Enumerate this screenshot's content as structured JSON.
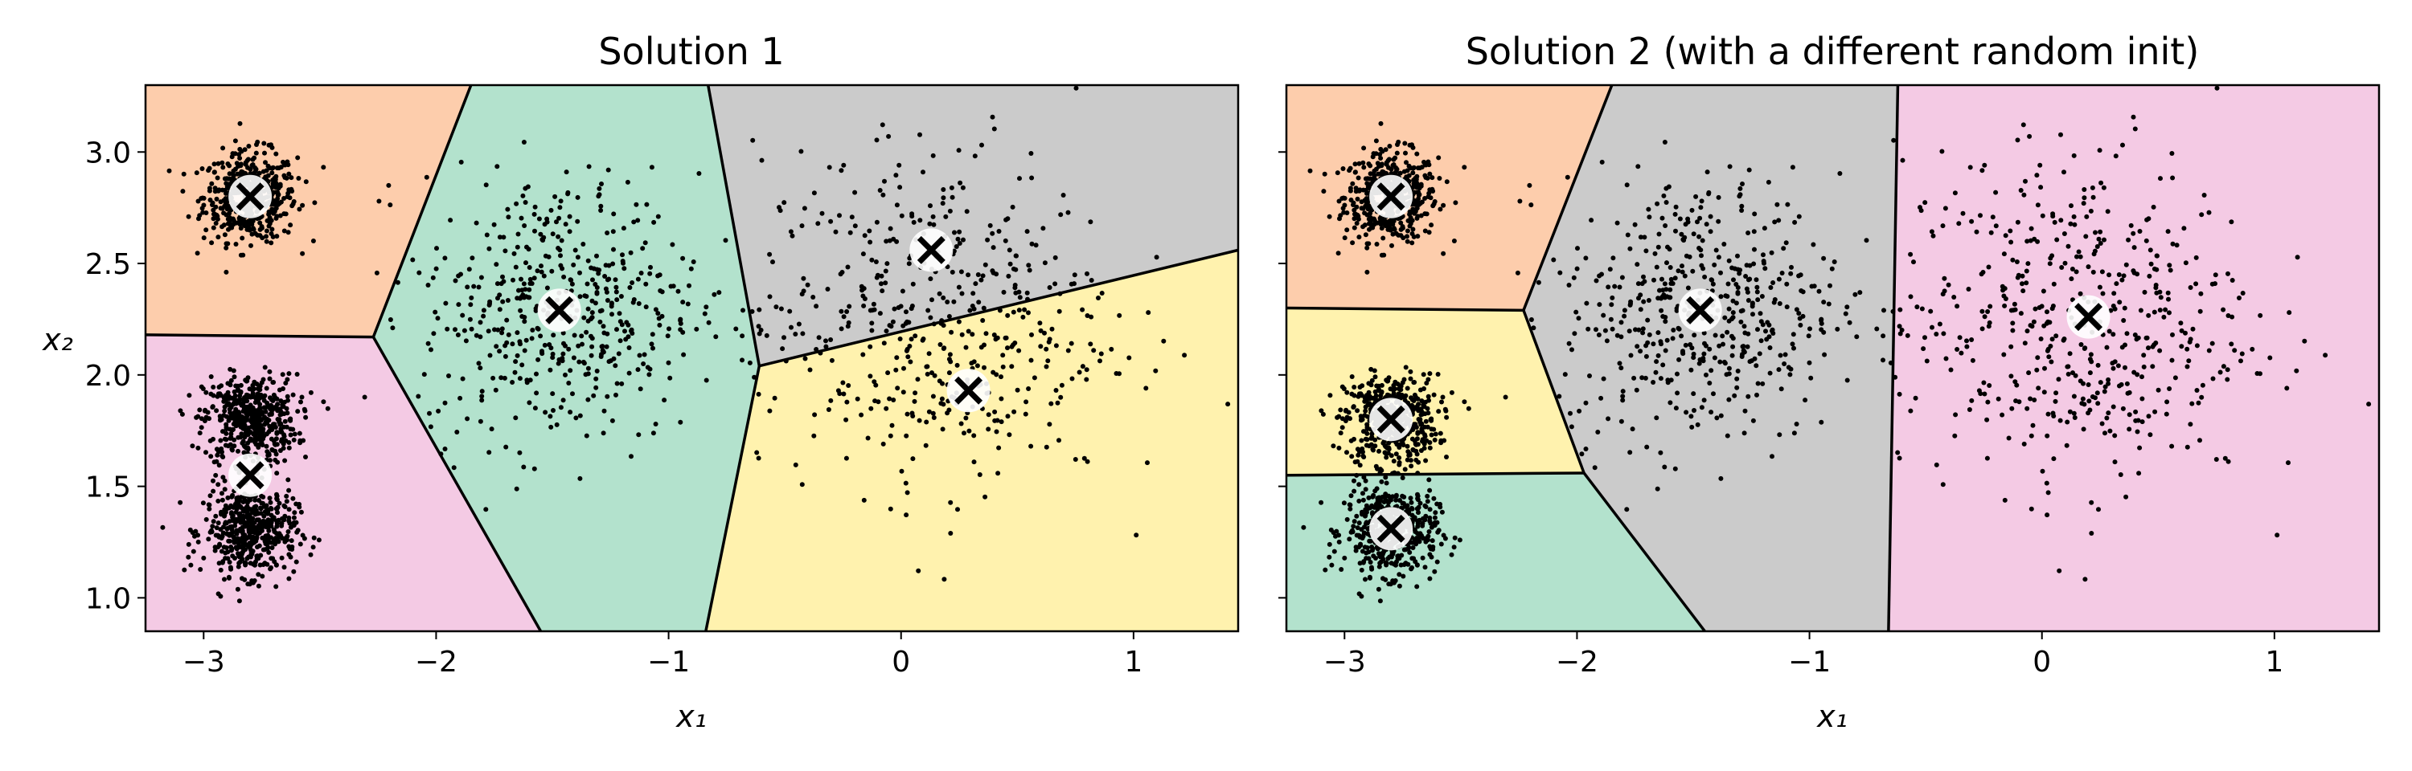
{
  "chart_data": [
    {
      "type": "scatter",
      "title": "Solution 1",
      "xlabel": "x₁",
      "ylabel": "x₂",
      "xlim": [
        -3.25,
        1.45
      ],
      "ylim": [
        0.85,
        3.3
      ],
      "xticks": [
        -3,
        -2,
        -1,
        0,
        1
      ],
      "xtick_labels": [
        "−3",
        "−2",
        "−1",
        "0",
        "1"
      ],
      "yticks": [
        1.0,
        1.5,
        2.0,
        2.5,
        3.0
      ],
      "ytick_labels": [
        "1.0",
        "1.5",
        "2.0",
        "2.5",
        "3.0"
      ],
      "grid": false,
      "centroids": [
        {
          "x": -2.8,
          "y": 2.8
        },
        {
          "x": -1.47,
          "y": 2.29
        },
        {
          "x": 0.13,
          "y": 2.56
        },
        {
          "x": 0.29,
          "y": 1.93
        },
        {
          "x": -2.8,
          "y": 1.55
        }
      ],
      "regions": [
        {
          "color": "#fdcdac",
          "polygon": [
            [
              -3.25,
              3.3
            ],
            [
              -1.85,
              3.3
            ],
            [
              -2.27,
              2.17
            ],
            [
              -3.25,
              2.18
            ]
          ]
        },
        {
          "color": "#b3e2cd",
          "polygon": [
            [
              -1.85,
              3.3
            ],
            [
              -0.83,
              3.3
            ],
            [
              -0.61,
              2.04
            ],
            [
              -0.84,
              0.85
            ],
            [
              -1.55,
              0.85
            ],
            [
              -2.27,
              2.17
            ]
          ]
        },
        {
          "color": "#cbcbcb",
          "polygon": [
            [
              -0.83,
              3.3
            ],
            [
              1.45,
              3.3
            ],
            [
              1.45,
              2.56
            ],
            [
              -0.61,
              2.04
            ]
          ]
        },
        {
          "color": "#fff2ae",
          "polygon": [
            [
              -0.61,
              2.04
            ],
            [
              1.45,
              2.56
            ],
            [
              1.45,
              0.85
            ],
            [
              -0.84,
              0.85
            ]
          ]
        },
        {
          "color": "#f4cae4",
          "polygon": [
            [
              -3.25,
              2.18
            ],
            [
              -2.27,
              2.17
            ],
            [
              -1.55,
              0.85
            ],
            [
              -3.25,
              0.85
            ]
          ]
        }
      ],
      "boundaries": [
        [
          [
            -1.85,
            3.3
          ],
          [
            -2.27,
            2.17
          ]
        ],
        [
          [
            -3.25,
            2.18
          ],
          [
            -2.27,
            2.17
          ]
        ],
        [
          [
            -2.27,
            2.17
          ],
          [
            -1.55,
            0.85
          ]
        ],
        [
          [
            -0.83,
            3.3
          ],
          [
            -0.61,
            2.04
          ]
        ],
        [
          [
            -0.61,
            2.04
          ],
          [
            -0.84,
            0.85
          ]
        ],
        [
          [
            -0.61,
            2.04
          ],
          [
            1.45,
            2.56
          ]
        ]
      ]
    },
    {
      "type": "scatter",
      "title": "Solution 2 (with a different random init)",
      "xlabel": "x₁",
      "xlim": [
        -3.25,
        1.45
      ],
      "ylim": [
        0.85,
        3.3
      ],
      "xticks": [
        -3,
        -2,
        -1,
        0,
        1
      ],
      "xtick_labels": [
        "−3",
        "−2",
        "−1",
        "0",
        "1"
      ],
      "yticks": [
        1.0,
        1.5,
        2.0,
        2.5,
        3.0
      ],
      "grid": false,
      "centroids": [
        {
          "x": -2.8,
          "y": 2.8
        },
        {
          "x": -1.47,
          "y": 2.29
        },
        {
          "x": 0.2,
          "y": 2.26
        },
        {
          "x": -2.8,
          "y": 1.8
        },
        {
          "x": -2.8,
          "y": 1.31
        }
      ],
      "regions": [
        {
          "color": "#fdcdac",
          "polygon": [
            [
              -3.25,
              3.3
            ],
            [
              -1.85,
              3.3
            ],
            [
              -2.23,
              2.29
            ],
            [
              -3.25,
              2.3
            ]
          ]
        },
        {
          "color": "#fff2ae",
          "polygon": [
            [
              -3.25,
              2.3
            ],
            [
              -2.23,
              2.29
            ],
            [
              -1.97,
              1.56
            ],
            [
              -3.25,
              1.55
            ]
          ]
        },
        {
          "color": "#b3e2cd",
          "polygon": [
            [
              -3.25,
              1.55
            ],
            [
              -1.97,
              1.56
            ],
            [
              -1.45,
              0.85
            ],
            [
              -3.25,
              0.85
            ]
          ]
        },
        {
          "color": "#cbcbcb",
          "polygon": [
            [
              -1.85,
              3.3
            ],
            [
              -0.62,
              3.3
            ],
            [
              -0.66,
              0.85
            ],
            [
              -1.45,
              0.85
            ],
            [
              -1.97,
              1.56
            ],
            [
              -2.23,
              2.29
            ]
          ]
        },
        {
          "color": "#f4cae4",
          "polygon": [
            [
              -0.62,
              3.3
            ],
            [
              1.45,
              3.3
            ],
            [
              1.45,
              0.85
            ],
            [
              -0.66,
              0.85
            ]
          ]
        }
      ],
      "boundaries": [
        [
          [
            -1.85,
            3.3
          ],
          [
            -2.23,
            2.29
          ]
        ],
        [
          [
            -3.25,
            2.3
          ],
          [
            -2.23,
            2.29
          ]
        ],
        [
          [
            -2.23,
            2.29
          ],
          [
            -1.97,
            1.56
          ]
        ],
        [
          [
            -3.25,
            1.55
          ],
          [
            -1.97,
            1.56
          ]
        ],
        [
          [
            -1.97,
            1.56
          ],
          [
            -1.45,
            0.85
          ]
        ],
        [
          [
            -0.62,
            3.3
          ],
          [
            -0.66,
            0.85
          ]
        ]
      ]
    }
  ],
  "blobs": [
    {
      "x": -2.8,
      "y": 2.8,
      "sx": 0.1,
      "sy": 0.1,
      "n": 500
    },
    {
      "x": -2.8,
      "y": 1.8,
      "sx": 0.1,
      "sy": 0.1,
      "n": 500
    },
    {
      "x": -2.8,
      "y": 1.3,
      "sx": 0.1,
      "sy": 0.1,
      "n": 500
    },
    {
      "x": -1.47,
      "y": 2.3,
      "sx": 0.3,
      "sy": 0.3,
      "n": 500
    },
    {
      "x": 0.15,
      "y": 2.25,
      "sx": 0.38,
      "sy": 0.38,
      "n": 500
    }
  ]
}
